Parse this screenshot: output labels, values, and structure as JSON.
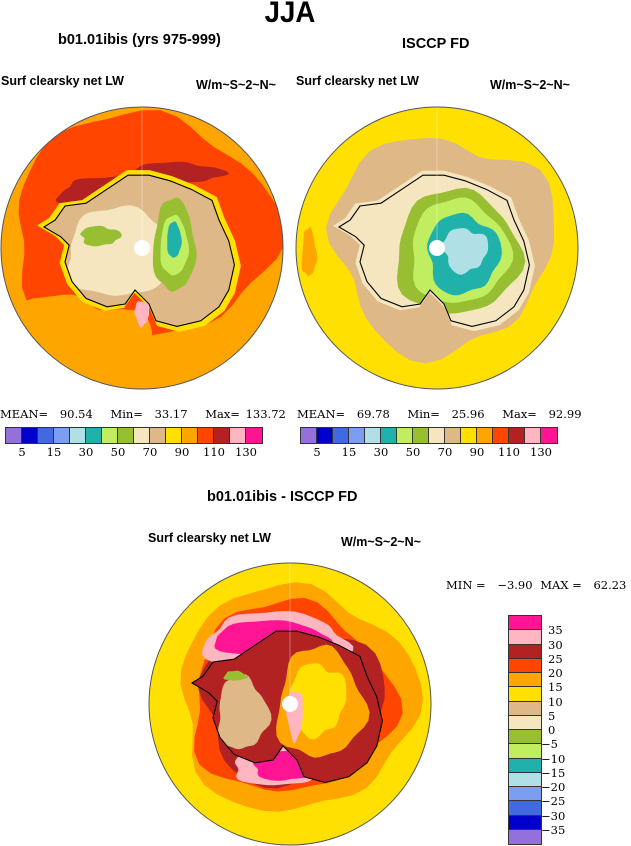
{
  "chart_data": [
    {
      "type": "heatmap",
      "projection": "south-polar-stereographic",
      "season_title": "JJA",
      "title": "b01.01ibis (yrs 975-999)",
      "variable": "Surf clearsky net LW",
      "units": "W/m~S~2~N~",
      "stats": {
        "mean_label": "MEAN=",
        "mean": "90.54",
        "min_label": "Min=",
        "min": "33.17",
        "max_label": "Max=",
        "max": "133.72"
      },
      "colorbar": {
        "levels": [
          5,
          10,
          15,
          20,
          30,
          40,
          50,
          60,
          70,
          80,
          90,
          100,
          110,
          120,
          130
        ],
        "tick_labels": [
          "5",
          "15",
          "30",
          "50",
          "70",
          "90",
          "110",
          "130"
        ],
        "orientation": "horizontal"
      },
      "regions": [
        {
          "name": "outer-ocean",
          "value_class": "90-100",
          "color_index": 11
        },
        {
          "name": "mid-ocean-ring",
          "value_class": "100-110",
          "color_index": 12
        },
        {
          "name": "ross-weddell-shelf",
          "value_class": "110-120",
          "color_index": 13
        },
        {
          "name": "coastal-margin",
          "value_class": "80-90",
          "color_index": 10
        },
        {
          "name": "coastal-plateau",
          "value_class": "70-80",
          "color_index": 9
        },
        {
          "name": "interior-plateau",
          "value_class": "60-70",
          "color_index": 8
        },
        {
          "name": "east-plateau-high",
          "value_class": "50-60",
          "color_index": 7
        },
        {
          "name": "east-plateau-core",
          "value_class": "40-50",
          "color_index": 6
        },
        {
          "name": "dome-minimum",
          "value_class": "30-40",
          "color_index": 5
        },
        {
          "name": "ross-polynya",
          "value_class": "120-130+",
          "color_index": 14
        }
      ]
    },
    {
      "type": "heatmap",
      "projection": "south-polar-stereographic",
      "title": "ISCCP FD",
      "variable": "Surf clearsky net LW",
      "units": "W/m~S~2~N~",
      "stats": {
        "mean_label": "MEAN=",
        "mean": "69.78",
        "min_label": "Min=",
        "min": "25.96",
        "max_label": "Max=",
        "max": "92.99"
      },
      "colorbar": {
        "levels": [
          5,
          10,
          15,
          20,
          30,
          40,
          50,
          60,
          70,
          80,
          90,
          100,
          110,
          120,
          130
        ],
        "tick_labels": [
          "5",
          "15",
          "30",
          "50",
          "70",
          "90",
          "110",
          "130"
        ],
        "orientation": "horizontal"
      },
      "regions": [
        {
          "name": "outer-ocean",
          "value_class": "80-90",
          "color_index": 10
        },
        {
          "name": "sea-ice-zone",
          "value_class": "70-80",
          "color_index": 9
        },
        {
          "name": "coastal-shelf",
          "value_class": "60-70",
          "color_index": 8
        },
        {
          "name": "plateau-margin",
          "value_class": "50-60",
          "color_index": 7
        },
        {
          "name": "plateau-slope",
          "value_class": "40-50",
          "color_index": 6
        },
        {
          "name": "plateau-interior",
          "value_class": "30-40",
          "color_index": 5
        },
        {
          "name": "plateau-core",
          "value_class": "20-30",
          "color_index": 4
        },
        {
          "name": "atlantic-patch",
          "value_class": "90-100",
          "color_index": 11
        }
      ]
    },
    {
      "type": "heatmap",
      "projection": "south-polar-stereographic",
      "title": "b01.01ibis - ISCCP FD",
      "variable": "Surf clearsky net LW",
      "units": "W/m~S~2~N~",
      "stats": {
        "min_label": "MIN =",
        "min": "−3.90",
        "max_label": "MAX =",
        "max": "62.23"
      },
      "colorbar": {
        "levels": [
          -35,
          -30,
          -25,
          -20,
          -15,
          -10,
          -5,
          0,
          5,
          10,
          15,
          20,
          25,
          30,
          35
        ],
        "tick_labels": [
          "35",
          "30",
          "25",
          "20",
          "15",
          "10",
          "5",
          "0",
          "−5",
          "−10",
          "−15",
          "−20",
          "−25",
          "−30",
          "−35"
        ],
        "orientation": "vertical"
      },
      "regions": [
        {
          "name": "outer-ocean",
          "value_class": "10-15",
          "color_index": 10
        },
        {
          "name": "mid-ocean",
          "value_class": "15-20",
          "color_index": 11
        },
        {
          "name": "inner-ring",
          "value_class": "20-25",
          "color_index": 12
        },
        {
          "name": "shelf-ring",
          "value_class": "25-30",
          "color_index": 13
        },
        {
          "name": "shelf-inner",
          "value_class": "30-35",
          "color_index": 14
        },
        {
          "name": "weddell-ross-max",
          "value_class": ">35",
          "color_index": 15
        },
        {
          "name": "west-antarctica",
          "value_class": "5-10",
          "color_index": 9
        },
        {
          "name": "peninsula-min",
          "value_class": "-5-0",
          "color_index": 7
        }
      ]
    }
  ],
  "palette_abs": [
    "#9370DB",
    "#0000CD",
    "#4169E1",
    "#7B9EF0",
    "#B0E0E6",
    "#20B2AA",
    "#C0EE60",
    "#98BE32",
    "#F5E6C0",
    "#DEB887",
    "#FFE000",
    "#FFA500",
    "#FF4500",
    "#B22222",
    "#FFB6C1",
    "#FF1493"
  ],
  "palette_diff": [
    "#FF1493",
    "#FFB6C1",
    "#B22222",
    "#FF4500",
    "#FFA500",
    "#FFE000",
    "#DEB887",
    "#F5E6C0",
    "#98BE32",
    "#C0EE60",
    "#20B2AA",
    "#B0E0E6",
    "#7B9EF0",
    "#4169E1",
    "#0000CD",
    "#9370DB"
  ],
  "coast_color": "#000000",
  "pole_color": "#ffffff"
}
